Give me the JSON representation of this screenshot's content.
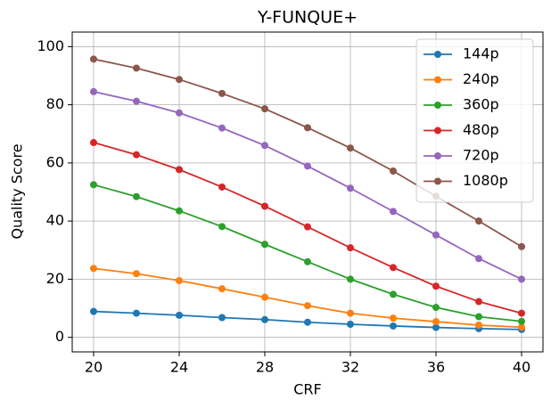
{
  "chart_data": {
    "type": "line",
    "title": "Y-FUNQUE+",
    "x_label": "CRF",
    "y_label": "Quality Score",
    "x": [
      20,
      22,
      24,
      26,
      28,
      30,
      32,
      34,
      36,
      38,
      40
    ],
    "series": [
      {
        "name": "144p",
        "color": "#1f77b4",
        "values": [
          8.9,
          8.3,
          7.6,
          6.8,
          6.1,
          5.2,
          4.5,
          3.9,
          3.4,
          3.0,
          2.7
        ]
      },
      {
        "name": "240p",
        "color": "#ff7f0e",
        "values": [
          23.7,
          21.9,
          19.5,
          16.7,
          13.8,
          10.9,
          8.3,
          6.6,
          5.4,
          4.2,
          3.5
        ]
      },
      {
        "name": "360p",
        "color": "#2ca02c",
        "values": [
          52.5,
          48.4,
          43.5,
          38.1,
          32.0,
          26.0,
          20.0,
          14.8,
          10.3,
          7.1,
          5.5
        ]
      },
      {
        "name": "480p",
        "color": "#d62728",
        "values": [
          67.0,
          62.8,
          57.7,
          51.7,
          45.1,
          38.0,
          30.8,
          24.0,
          17.6,
          12.3,
          8.3
        ]
      },
      {
        "name": "720p",
        "color": "#9467bd",
        "values": [
          84.5,
          81.2,
          77.2,
          72.0,
          66.0,
          58.9,
          51.3,
          43.3,
          35.2,
          27.1,
          20.0
        ]
      },
      {
        "name": "1080p",
        "color": "#8c564b",
        "values": [
          95.7,
          92.6,
          88.7,
          83.9,
          78.6,
          72.1,
          65.1,
          57.2,
          48.5,
          40.0,
          31.2
        ]
      }
    ],
    "xlim": [
      19,
      41
    ],
    "xticks": [
      20,
      24,
      28,
      32,
      36,
      40
    ],
    "ylim": [
      -5,
      105
    ],
    "yticks": [
      0,
      20,
      40,
      60,
      80,
      100
    ],
    "grid": true,
    "legend": "upper right"
  }
}
